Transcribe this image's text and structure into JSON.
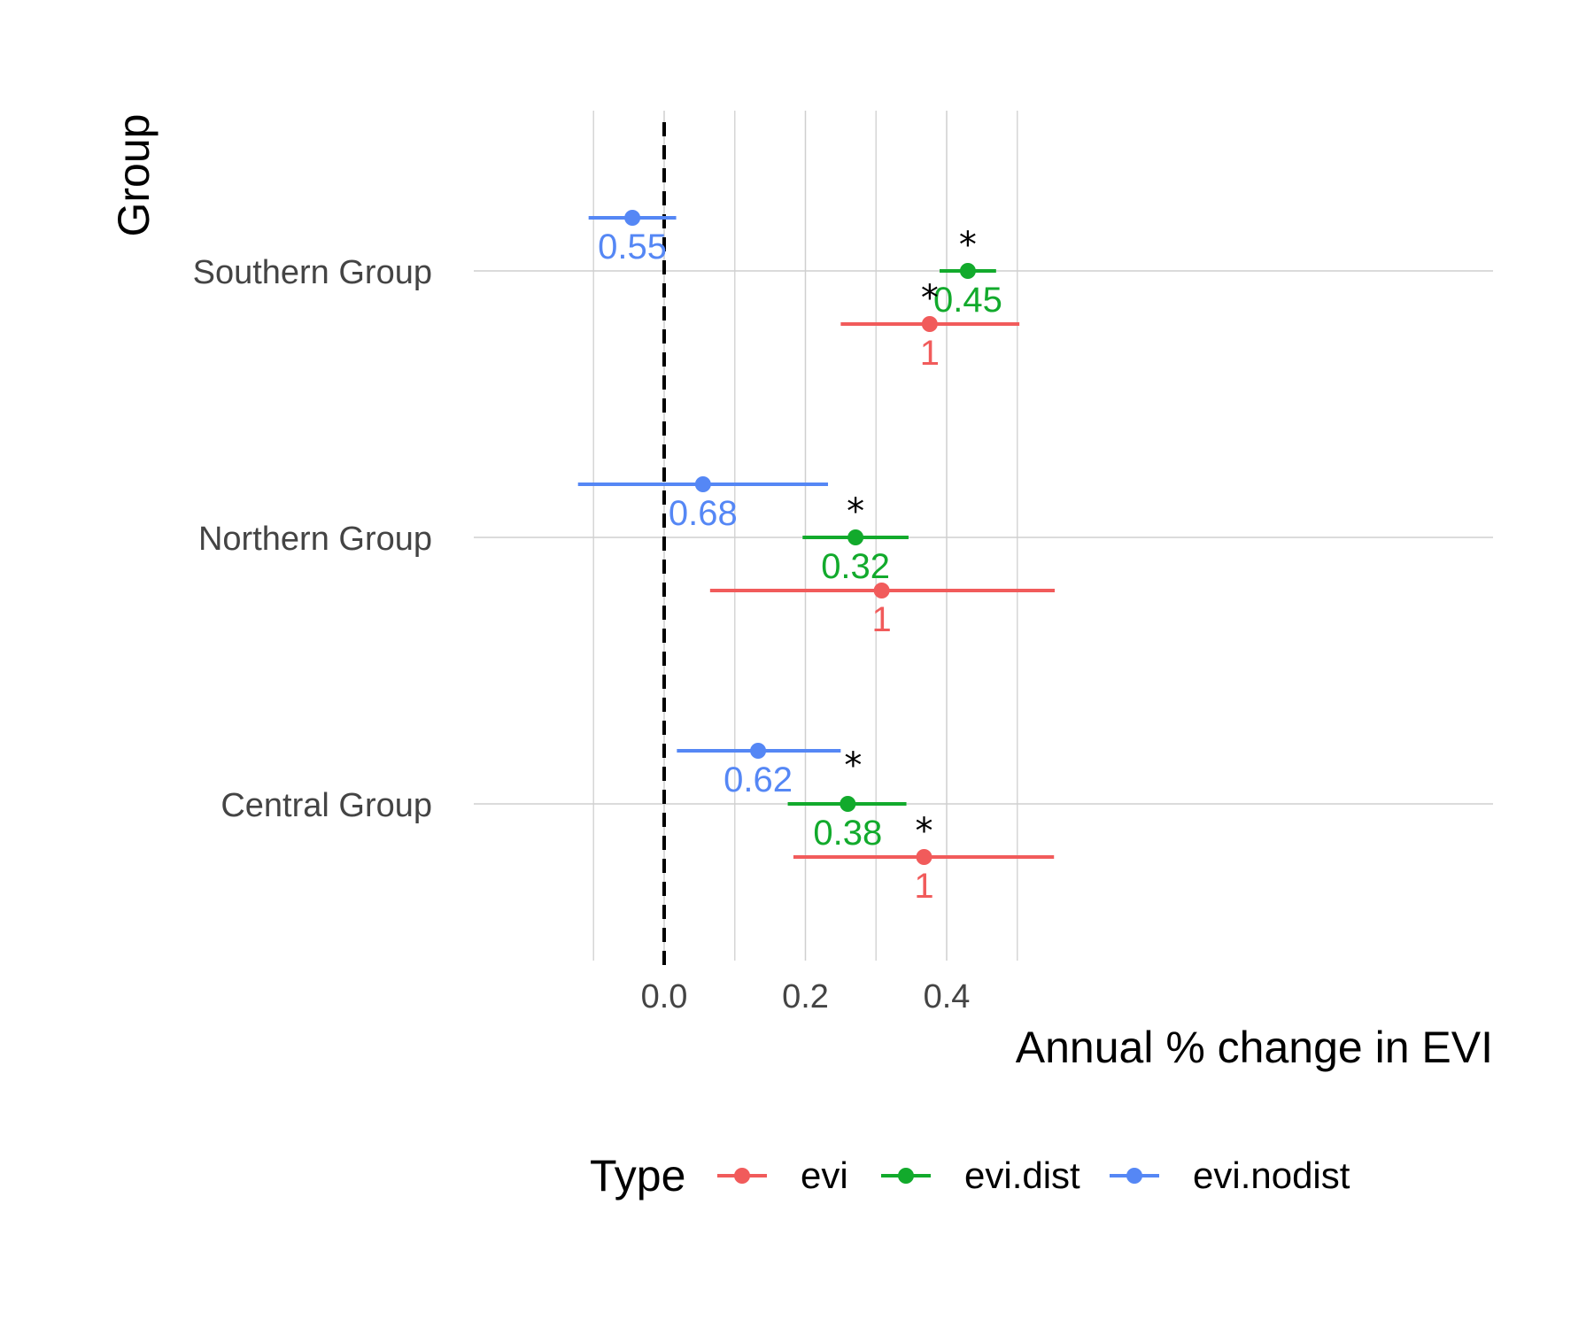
{
  "chart_data": {
    "type": "forest",
    "xlabel": "Annual % change in EVI",
    "ylabel": "Group",
    "xlim": [
      -0.1,
      0.55
    ],
    "x_ticks": [
      0.0,
      0.2,
      0.4
    ],
    "x_tick_labels": [
      "0.0",
      "0.2",
      "0.4"
    ],
    "reference_line": 0.0,
    "grid": true,
    "legend": {
      "title": "Type",
      "position": "bottom",
      "entries": [
        {
          "name": "evi",
          "color": "#F15B5B"
        },
        {
          "name": "evi.dist",
          "color": "#12AA2C"
        },
        {
          "name": "evi.nodist",
          "color": "#5587F5"
        }
      ]
    },
    "groups": [
      {
        "name": "Southern Group",
        "points": [
          {
            "type": "evi.nodist",
            "estimate": -0.045,
            "lo": -0.107,
            "hi": 0.017,
            "label": "0.55",
            "significant": false
          },
          {
            "type": "evi.dist",
            "estimate": 0.43,
            "lo": 0.39,
            "hi": 0.47,
            "label": "0.45",
            "significant": true
          },
          {
            "type": "evi",
            "estimate": 0.376,
            "lo": 0.25,
            "hi": 0.503,
            "label": "1",
            "significant": true
          }
        ]
      },
      {
        "name": "Northern Group",
        "points": [
          {
            "type": "evi.nodist",
            "estimate": 0.055,
            "lo": -0.122,
            "hi": 0.232,
            "label": "0.68",
            "significant": false
          },
          {
            "type": "evi.dist",
            "estimate": 0.271,
            "lo": 0.196,
            "hi": 0.346,
            "label": "0.32",
            "significant": true
          },
          {
            "type": "evi",
            "estimate": 0.308,
            "lo": 0.065,
            "hi": 0.553,
            "label": "1",
            "significant": false
          }
        ]
      },
      {
        "name": "Central Group",
        "points": [
          {
            "type": "evi.nodist",
            "estimate": 0.133,
            "lo": 0.018,
            "hi": 0.25,
            "label": "0.62",
            "significant": true
          },
          {
            "type": "evi.dist",
            "estimate": 0.26,
            "lo": 0.175,
            "hi": 0.343,
            "label": "0.38",
            "significant": false
          },
          {
            "type": "evi",
            "estimate": 0.368,
            "lo": 0.183,
            "hi": 0.552,
            "label": "1",
            "significant": true
          }
        ]
      }
    ]
  }
}
